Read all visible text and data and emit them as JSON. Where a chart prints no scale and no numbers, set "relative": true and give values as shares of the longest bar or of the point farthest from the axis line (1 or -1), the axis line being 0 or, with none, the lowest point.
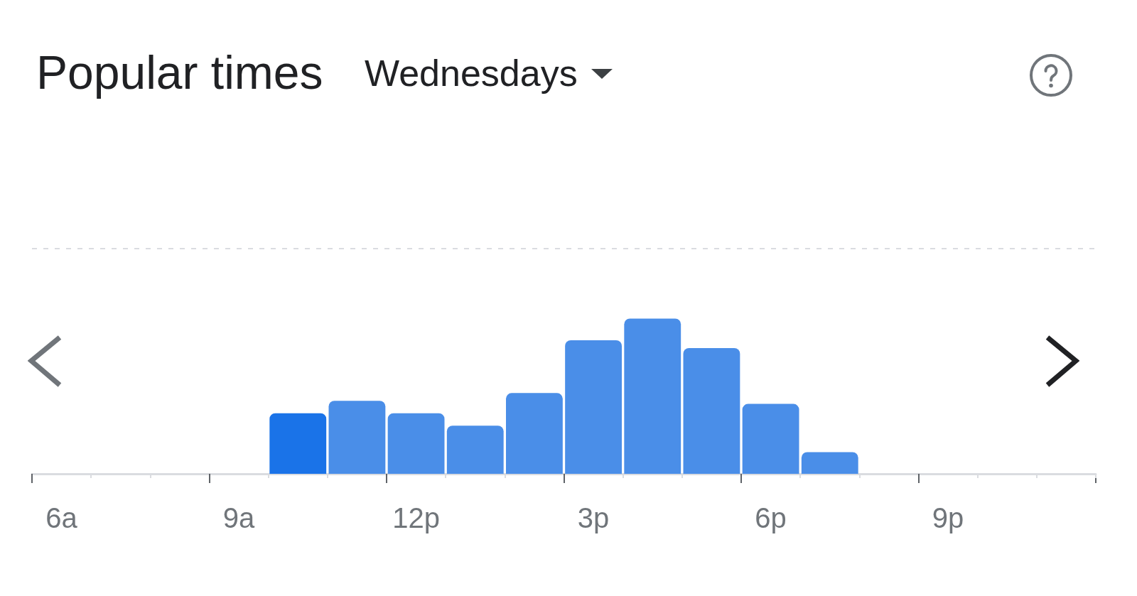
{
  "chart_data": {
    "type": "bar",
    "title": "Popular times",
    "subtitle": "Wednesdays",
    "relative": true,
    "categories": [
      "6a",
      null,
      null,
      "9a",
      null,
      null,
      "12p",
      null,
      null,
      "3p",
      null,
      null,
      "6p",
      null,
      null,
      "9p",
      null,
      null
    ],
    "values": [
      null,
      null,
      null,
      null,
      0.39,
      0.47,
      0.39,
      0.31,
      0.52,
      0.86,
      1,
      0.81,
      0.45,
      0.14,
      null,
      null,
      null,
      null
    ],
    "colors": [
      null,
      null,
      null,
      null,
      "#1a73e8",
      "#4a8ee8",
      "#4a8ee8",
      "#4a8ee8",
      "#4a8ee8",
      "#4a8ee8",
      "#4a8ee8",
      "#4a8ee8",
      "#4a8ee8",
      "#4a8ee8",
      null,
      null,
      null,
      null
    ],
    "ref_lines": [
      {
        "axis": "y",
        "value": 1.45,
        "color": "#dadce0",
        "line_style": "dashed"
      }
    ],
    "grid": false
  }
}
